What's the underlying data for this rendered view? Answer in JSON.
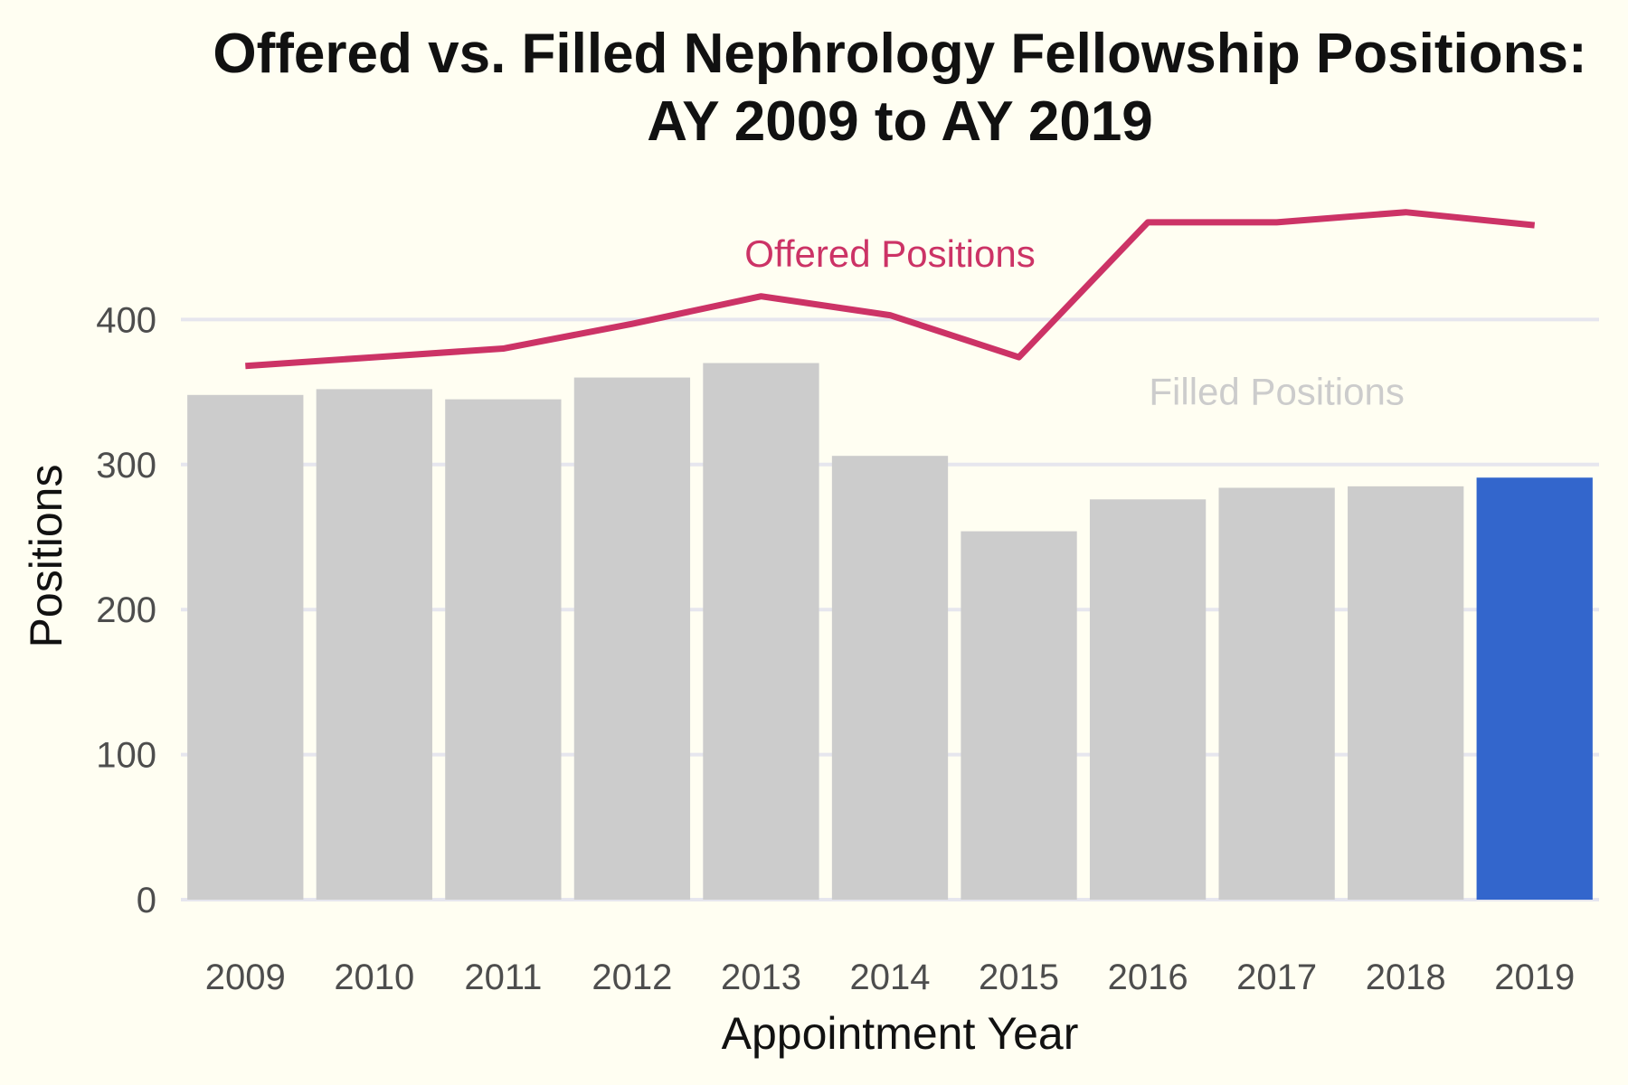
{
  "chart_data": {
    "type": "bar",
    "title": "Offered vs. Filled Nephrology Fellowship Positions:",
    "subtitle": "AY 2009 to AY 2019",
    "xlabel": "Appointment Year",
    "ylabel": "Positions",
    "categories": [
      "2009",
      "2010",
      "2011",
      "2012",
      "2013",
      "2014",
      "2015",
      "2016",
      "2017",
      "2018",
      "2019"
    ],
    "ylim": [
      0,
      480
    ],
    "yticks": [
      0,
      100,
      200,
      300,
      400
    ],
    "grid": true,
    "legend": "none",
    "series": [
      {
        "name": "Filled Positions",
        "type": "bar",
        "values": [
          348,
          352,
          345,
          360,
          370,
          306,
          254,
          276,
          284,
          285,
          291
        ],
        "color": "#CCCCCC",
        "highlight_index": 10,
        "highlight_color": "#3366CC"
      },
      {
        "name": "Offered Positions",
        "type": "line",
        "values": [
          368,
          374,
          380,
          397,
          416,
          403,
          374,
          467,
          467,
          474,
          465
        ],
        "color": "#CC3366"
      }
    ],
    "annotations": [
      {
        "text": "Offered Positions",
        "color": "#CC3366",
        "x": "2014",
        "y": 445
      },
      {
        "text": "Filled Positions",
        "color": "#CCCCCC",
        "x": "2017",
        "y": 350
      }
    ]
  }
}
